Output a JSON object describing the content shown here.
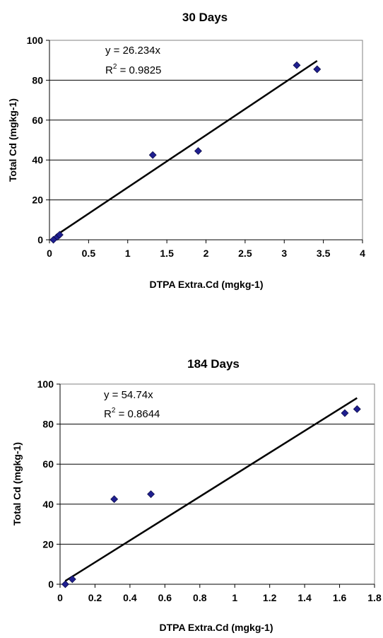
{
  "chart_data": [
    {
      "type": "scatter",
      "title": "30 Days",
      "xlabel": "DTPA Extra.Cd (mgkg-1)",
      "ylabel": "Total Cd (mgkg-1)",
      "xlim": [
        0,
        4
      ],
      "ylim": [
        0,
        100
      ],
      "xticks": [
        "0",
        "0.5",
        "1",
        "1.5",
        "2",
        "2.5",
        "3",
        "3.5",
        "4"
      ],
      "yticks": [
        "0",
        "20",
        "40",
        "60",
        "80",
        "100"
      ],
      "grid": "horizontal",
      "marker_color": "#1f1f8f",
      "points": [
        {
          "x": 0.05,
          "y": 0
        },
        {
          "x": 0.1,
          "y": 1.5
        },
        {
          "x": 0.13,
          "y": 2.5
        },
        {
          "x": 1.32,
          "y": 42.5
        },
        {
          "x": 1.9,
          "y": 44.5
        },
        {
          "x": 3.16,
          "y": 87.5
        },
        {
          "x": 3.42,
          "y": 85.5
        }
      ],
      "trendline": {
        "slope": 26.234,
        "x_range": [
          0.08,
          3.42
        ]
      },
      "equation": "y = 26.234x",
      "r2_prefix": "R",
      "r2_sup": "2",
      "r2_value": " = 0.9825"
    },
    {
      "type": "scatter",
      "title": "184 Days",
      "xlabel": "DTPA Extra.Cd (mgkg-1)",
      "ylabel": "Total Cd  (mgkg-1)",
      "xlim": [
        0,
        1.8
      ],
      "ylim": [
        0,
        100
      ],
      "xticks": [
        "0",
        "0.2",
        "0.4",
        "0.6",
        "0.8",
        "1",
        "1.2",
        "1.4",
        "1.6",
        "1.8"
      ],
      "yticks": [
        "0",
        "20",
        "40",
        "60",
        "80",
        "100"
      ],
      "grid": "horizontal",
      "marker_color": "#1f1f8f",
      "points": [
        {
          "x": 0.03,
          "y": 0
        },
        {
          "x": 0.07,
          "y": 2.5
        },
        {
          "x": 0.31,
          "y": 42.5
        },
        {
          "x": 0.52,
          "y": 45
        },
        {
          "x": 1.63,
          "y": 85.5
        },
        {
          "x": 1.7,
          "y": 87.5
        }
      ],
      "trendline": {
        "slope": 54.74,
        "x_range": [
          0.03,
          1.7
        ]
      },
      "equation": "y = 54.74x",
      "r2_prefix": "R",
      "r2_sup": "2",
      "r2_value": " = 0.8644"
    }
  ]
}
